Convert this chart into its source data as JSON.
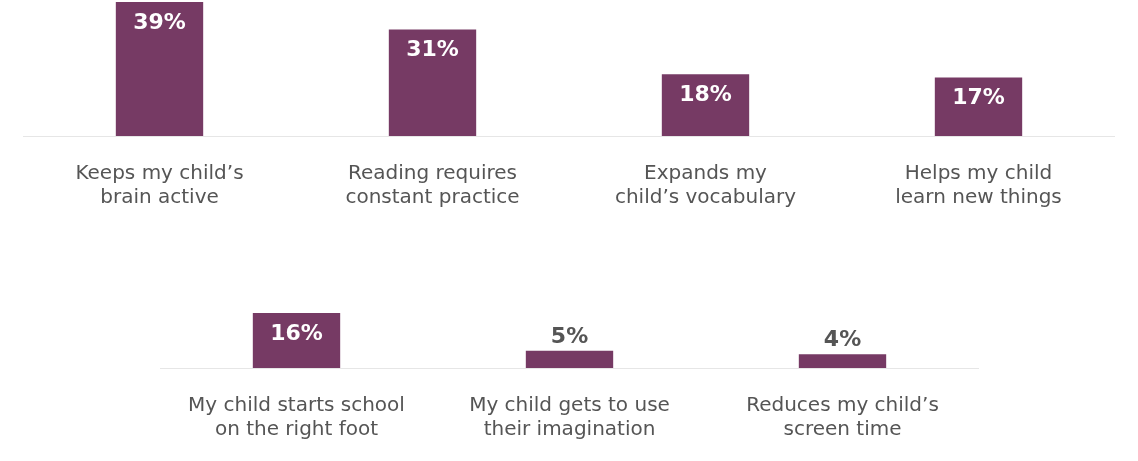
{
  "chart_data": [
    {
      "type": "bar",
      "categories": [
        "Keeps my child’s brain active",
        "Reading requires constant practice",
        "Expands my child’s vocabulary",
        "Helps my child learn new things"
      ],
      "values": [
        39,
        31,
        18,
        17
      ],
      "value_labels": [
        "39%",
        "31%",
        "18%",
        "17%"
      ],
      "color": "#763a64"
    },
    {
      "type": "bar",
      "categories": [
        "My child starts school on the right foot",
        "My child gets to use their imagination",
        "Reduces my child’s screen time"
      ],
      "values": [
        16,
        5,
        4
      ],
      "value_labels": [
        "16%",
        "5%",
        "4%"
      ],
      "color": "#763a64"
    }
  ]
}
